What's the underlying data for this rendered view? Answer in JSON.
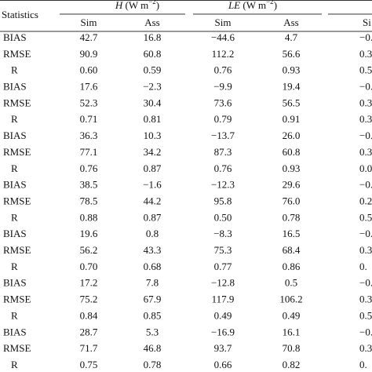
{
  "table": {
    "stat_header": "Statistics",
    "groups": [
      {
        "symbol": "H",
        "unit": "(W m",
        "exponent": "−2",
        "close": ")",
        "sub": [
          "Sim",
          "Ass"
        ]
      },
      {
        "symbol": "LE",
        "unit": "(W m",
        "exponent": "−2",
        "close": ")",
        "sub": [
          "Sim",
          "Ass"
        ]
      },
      {
        "sub": [
          "Si"
        ]
      }
    ],
    "rows": [
      [
        "BIAS",
        "42.7",
        "16.8",
        "−44.6",
        "4.7",
        "−0."
      ],
      [
        "RMSE",
        "90.9",
        "60.8",
        "112.2",
        "56.6",
        "0.3"
      ],
      [
        "R",
        "0.60",
        "0.59",
        "0.76",
        "0.93",
        "0.5"
      ],
      [
        "BIAS",
        "17.6",
        "−2.3",
        "−9.9",
        "19.4",
        "−0."
      ],
      [
        "RMSE",
        "52.3",
        "30.4",
        "73.6",
        "56.5",
        "0.3"
      ],
      [
        "R",
        "0.71",
        "0.81",
        "0.79",
        "0.91",
        "0.3"
      ],
      [
        "BIAS",
        "36.3",
        "10.3",
        "−13.7",
        "26.0",
        "−0."
      ],
      [
        "RMSE",
        "77.1",
        "34.2",
        "87.3",
        "60.8",
        "0.3"
      ],
      [
        "R",
        "0.76",
        "0.87",
        "0.76",
        "0.93",
        "0.0"
      ],
      [
        "BIAS",
        "38.5",
        "−1.6",
        "−12.3",
        "29.6",
        "−0."
      ],
      [
        "RMSE",
        "78.5",
        "44.2",
        "95.8",
        "76.0",
        "0.2"
      ],
      [
        "R",
        "0.88",
        "0.87",
        "0.50",
        "0.78",
        "0.5"
      ],
      [
        "BIAS",
        "19.6",
        "0.8",
        "−8.3",
        "16.5",
        "−0."
      ],
      [
        "RMSE",
        "56.2",
        "43.3",
        "75.3",
        "68.4",
        "0.3"
      ],
      [
        "R",
        "0.70",
        "0.68",
        "0.77",
        "0.86",
        "0."
      ],
      [
        "BIAS",
        "17.2",
        "7.8",
        "−12.8",
        "0.5",
        "−0."
      ],
      [
        "RMSE",
        "75.2",
        "67.9",
        "117.9",
        "106.2",
        "0.3"
      ],
      [
        "R",
        "0.84",
        "0.85",
        "0.49",
        "0.49",
        "0.5"
      ],
      [
        "BIAS",
        "28.7",
        "5.3",
        "−16.9",
        "16.1",
        "−0."
      ],
      [
        "RMSE",
        "71.7",
        "46.8",
        "93.7",
        "70.8",
        "0.3"
      ],
      [
        "R",
        "0.75",
        "0.78",
        "0.66",
        "0.82",
        "0."
      ]
    ]
  }
}
